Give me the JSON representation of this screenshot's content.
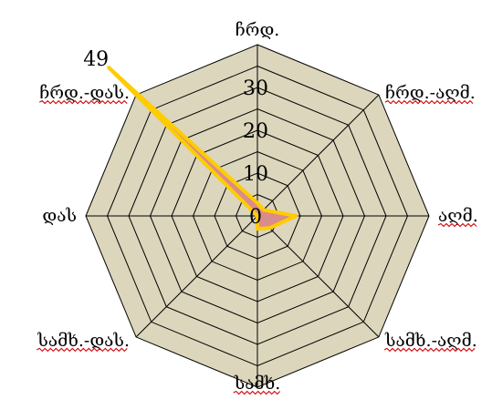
{
  "chart_data": {
    "type": "radar",
    "title": "",
    "categories": [
      "ჩრდ.",
      "ჩრდ.-აღმ.",
      "აღმ.",
      "სამხ.-აღმ.",
      "სამხ.",
      "სამხ.-დას.",
      "დას",
      "ჩრდ.-დას."
    ],
    "spell_flagged": [
      false,
      true,
      true,
      true,
      true,
      true,
      false,
      true
    ],
    "series": [
      {
        "values": [
          3,
          2,
          9,
          4,
          3,
          0,
          0,
          49
        ]
      }
    ],
    "rlim": [
      0,
      40
    ],
    "rings": [
      5,
      10,
      15,
      20,
      25,
      30,
      35,
      40
    ],
    "tick_labels": [
      "0",
      "10",
      "20",
      "30"
    ],
    "tick_values": [
      0,
      10,
      20,
      30
    ],
    "max_label": "49",
    "grid": true,
    "legend": "none",
    "colors": {
      "plot_fill": "#dcd6bc",
      "grid": "#000000",
      "area_fill": "#d98c8c",
      "area_edge": "#ffcc00"
    }
  }
}
